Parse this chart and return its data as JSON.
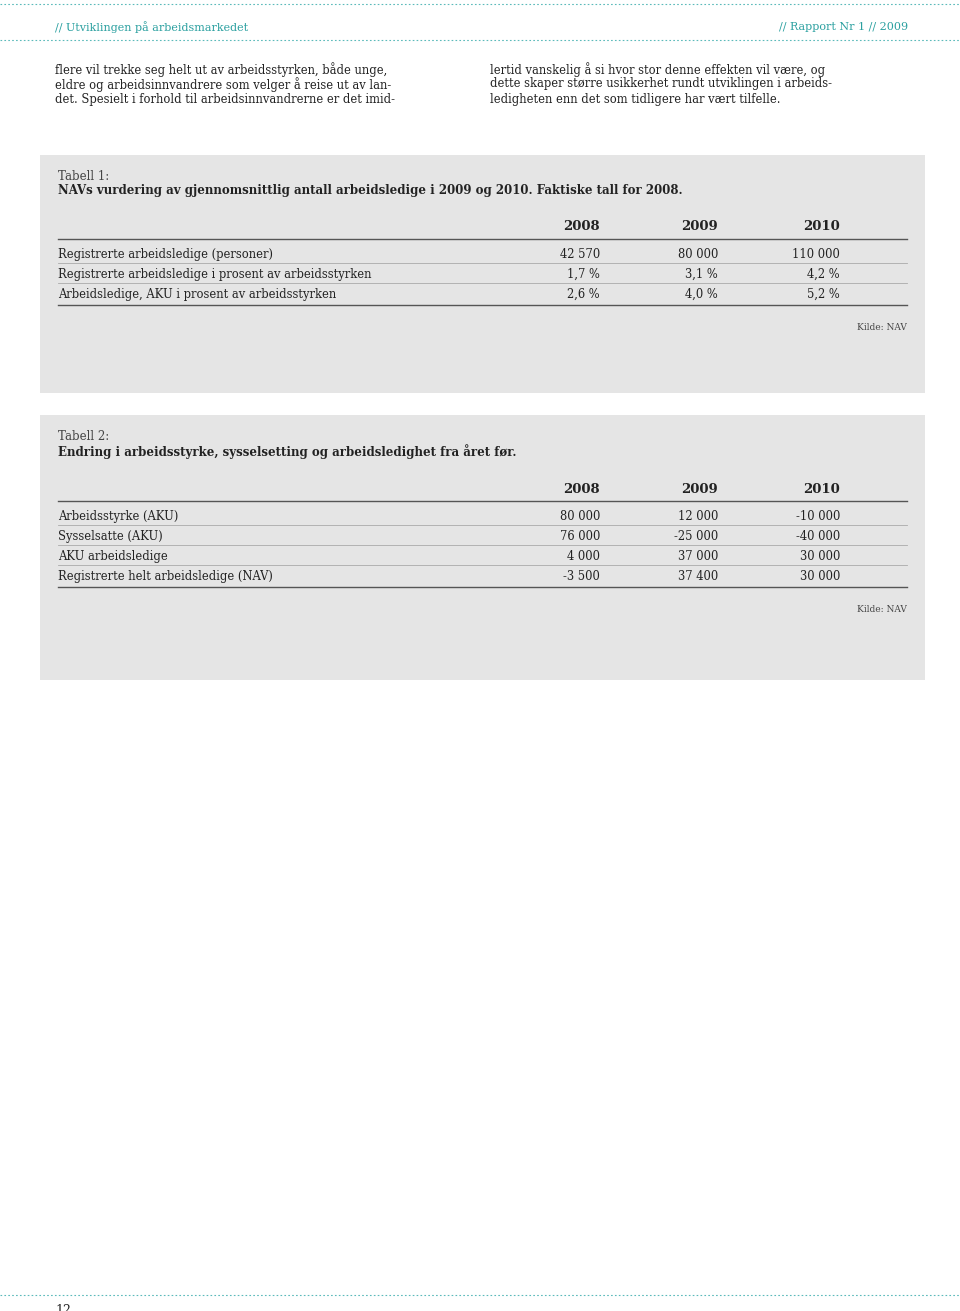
{
  "page_bg": "#ffffff",
  "table_bg": "#e5e5e5",
  "teal_color": "#2ba0a0",
  "header_left": "// Utviklingen på arbeidsmarkedet",
  "header_right": "// Rapport Nr 1 // 2009",
  "body_col1_lines": [
    "flere vil trekke seg helt ut av arbeidsstyrken, både unge,",
    "eldre og arbeidsinnvandrere som velger å reise ut av lan-",
    "det. Spesielt i forhold til arbeidsinnvandrerne er det imid-"
  ],
  "body_col2_lines": [
    "lertid vanskelig å si hvor stor denne effekten vil være, og",
    "dette skaper større usikkerhet rundt utviklingen i arbeids-",
    "ledigheten enn det som tidligere har vært tilfelle."
  ],
  "table1_label": "Tabell 1:",
  "table1_title": "NAVs vurdering av gjennomsnittlig antall arbeidsledige i 2009 og 2010. Faktiske tall for 2008.",
  "table1_headers": [
    "",
    "2008",
    "2009",
    "2010"
  ],
  "table1_rows": [
    [
      "Registrerte arbeidsledige (personer)",
      "42 570",
      "80 000",
      "110 000"
    ],
    [
      "Registrerte arbeidsledige i prosent av arbeidsstyrken",
      "1,7 %",
      "3,1 %",
      "4,2 %"
    ],
    [
      "Arbeidsledige, AKU i prosent av arbeidsstyrken",
      "2,6 %",
      "4,0 %",
      "5,2 %"
    ]
  ],
  "table1_source": "Kilde: NAV",
  "table2_label": "Tabell 2:",
  "table2_title": "Endring i arbeidsstyrke, sysselsetting og arbeidsledighet fra året før.",
  "table2_headers": [
    "",
    "2008",
    "2009",
    "2010"
  ],
  "table2_rows": [
    [
      "Arbeidsstyrke (AKU)",
      "80 000",
      "12 000",
      "-10 000"
    ],
    [
      "Sysselsatte (AKU)",
      "76 000",
      "-25 000",
      "-40 000"
    ],
    [
      "AKU arbeidsledige",
      "4 000",
      "37 000",
      "30 000"
    ],
    [
      "Registrerte helt arbeidsledige (NAV)",
      "-3 500",
      "37 400",
      "30 000"
    ]
  ],
  "table2_source": "Kilde: NAV",
  "footer_text": "12",
  "dotted_color": "#5bbaba",
  "line_color": "#555555",
  "row_line_color": "#aaaaaa",
  "text_color": "#222222",
  "label_color": "#444444",
  "source_color": "#444444"
}
